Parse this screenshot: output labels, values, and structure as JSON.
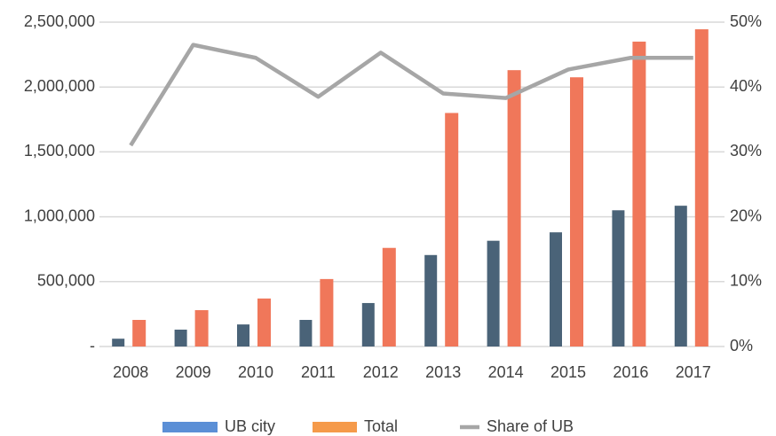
{
  "chart_data": {
    "type": "bar-line",
    "categories": [
      "2008",
      "2009",
      "2010",
      "2011",
      "2012",
      "2013",
      "2014",
      "2015",
      "2016",
      "2017"
    ],
    "series": [
      {
        "name": "UB city",
        "type": "bar",
        "color": "#4a6378",
        "legend_color": "#5b8fd6",
        "values": [
          60000,
          130000,
          170000,
          205000,
          335000,
          705000,
          815000,
          880000,
          1050000,
          1085000
        ]
      },
      {
        "name": "Total",
        "type": "bar",
        "color": "#f0775a",
        "legend_color": "#f59a4a",
        "values": [
          205000,
          280000,
          370000,
          520000,
          760000,
          1800000,
          2130000,
          2075000,
          2350000,
          2445000
        ]
      },
      {
        "name": "Share of UB",
        "type": "line",
        "axis": "y2",
        "color": "#a6a6a6",
        "values": [
          31,
          46.5,
          44.5,
          38.5,
          45.3,
          39,
          38.3,
          42.7,
          44.5,
          44.5
        ]
      }
    ],
    "ylim": [
      0,
      2500000
    ],
    "yticks": [
      {
        "value": 0,
        "label": "-"
      },
      {
        "value": 500000,
        "label": "500,000"
      },
      {
        "value": 1000000,
        "label": "1,000,000"
      },
      {
        "value": 1500000,
        "label": "1,500,000"
      },
      {
        "value": 2000000,
        "label": "2,000,000"
      },
      {
        "value": 2500000,
        "label": "2,500,000"
      }
    ],
    "y2lim": [
      0,
      50
    ],
    "y2ticks": [
      {
        "value": 0,
        "label": "0%"
      },
      {
        "value": 10,
        "label": "10%"
      },
      {
        "value": 20,
        "label": "20%"
      },
      {
        "value": 30,
        "label": "30%"
      },
      {
        "value": 40,
        "label": "40%"
      },
      {
        "value": 50,
        "label": "50%"
      }
    ],
    "grid": true,
    "legend": "bottom"
  }
}
